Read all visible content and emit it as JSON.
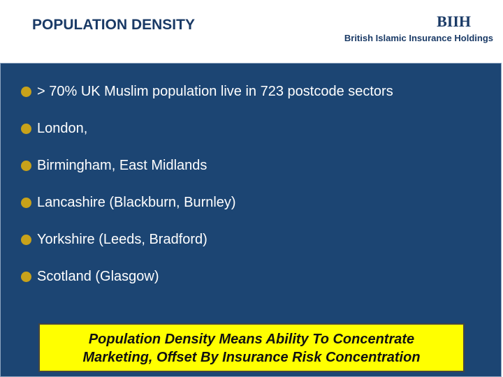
{
  "header": {
    "title": "POPULATION DENSITY",
    "logo": "BIIH",
    "company": "British Islamic Insurance Holdings"
  },
  "bullets": [
    "> 70% UK Muslim population live in 723 postcode sectors",
    "London,",
    "Birmingham, East Midlands",
    "Lancashire (Blackburn, Burnley)",
    "Yorkshire (Leeds, Bradford)",
    "Scotland (Glasgow)"
  ],
  "callout": {
    "lines": [
      "Population Density Means Ability To Concentrate",
      "Marketing, Offset By Insurance Risk Concentration"
    ]
  }
}
